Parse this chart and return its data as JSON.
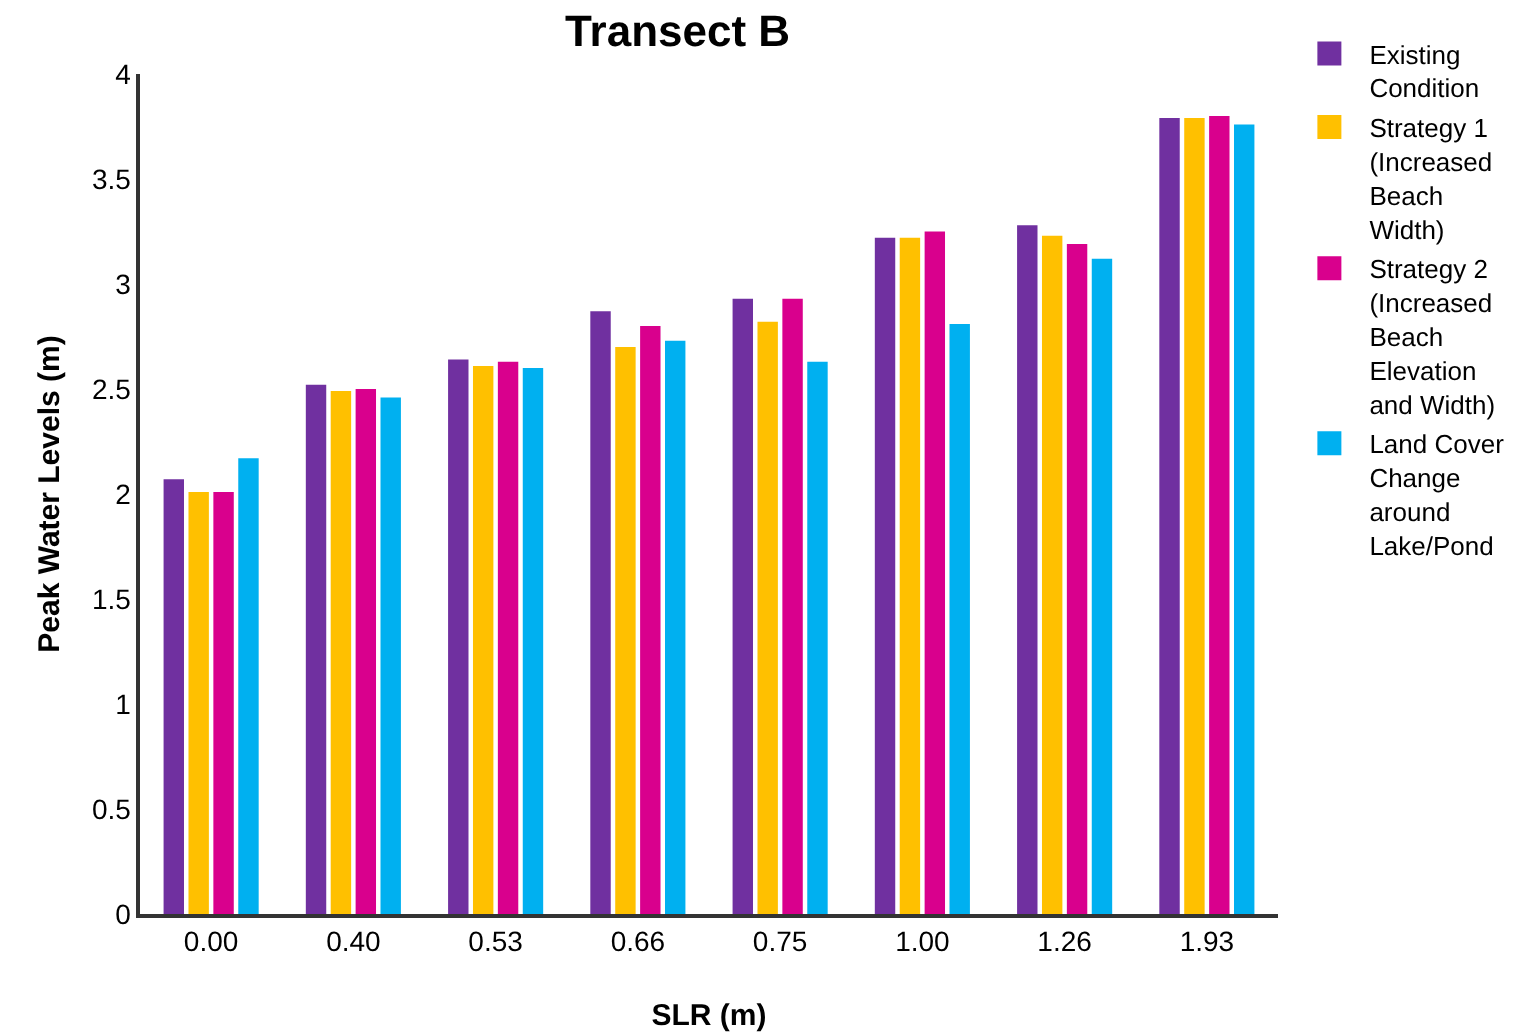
{
  "chart_data": {
    "type": "bar",
    "title": "Transect B",
    "xlabel": "SLR (m)",
    "ylabel": "Peak Water Levels (m)",
    "categories": [
      "0.00",
      "0.40",
      "0.53",
      "0.66",
      "0.75",
      "1.00",
      "1.26",
      "1.93"
    ],
    "series": [
      {
        "name": "Existing Condition",
        "color": "#7030a0",
        "values": [
          2.07,
          2.52,
          2.64,
          2.87,
          2.93,
          3.22,
          3.28,
          3.79
        ]
      },
      {
        "name": "Strategy 1 (Increased Beach Width)",
        "color": "#ffc000",
        "values": [
          2.01,
          2.49,
          2.61,
          2.7,
          2.82,
          3.22,
          3.23,
          3.79
        ]
      },
      {
        "name": "Strategy 2 (Increased Beach Elevation and Width)",
        "color": "#d9008d",
        "values": [
          2.01,
          2.5,
          2.63,
          2.8,
          2.93,
          3.25,
          3.19,
          3.8
        ]
      },
      {
        "name": "Land Cover Change around Lake/Pond",
        "color": "#00b0f0",
        "values": [
          2.17,
          2.46,
          2.6,
          2.73,
          2.63,
          2.81,
          3.12,
          3.76
        ]
      }
    ],
    "ylim": [
      0,
      4
    ],
    "yticks": [
      0,
      0.5,
      1,
      1.5,
      2,
      2.5,
      3,
      3.5,
      4
    ],
    "grid": false,
    "legend": "right"
  }
}
